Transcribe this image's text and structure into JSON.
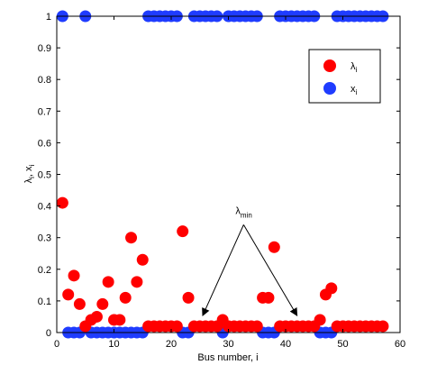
{
  "chart_data": {
    "type": "scatter",
    "title": "",
    "xlabel": "Bus number, i",
    "ylabel": {
      "base1": "λ",
      "sub1": "i",
      "sep": ", x",
      "sub2": "i"
    },
    "xlim": [
      0,
      60
    ],
    "ylim": [
      0,
      1
    ],
    "x_ticks": [
      0,
      10,
      20,
      30,
      40,
      50,
      60
    ],
    "y_ticks": [
      0,
      0.1,
      0.2,
      0.3,
      0.4,
      0.5,
      0.6,
      0.7,
      0.8,
      0.9,
      1
    ],
    "grid": false,
    "legend_position": "top-right",
    "series": [
      {
        "name_base": "λ",
        "name_sub": "i",
        "color": "#ff0000",
        "points": [
          [
            1,
            0.41
          ],
          [
            2,
            0.12
          ],
          [
            3,
            0.18
          ],
          [
            4,
            0.09
          ],
          [
            5,
            0.02
          ],
          [
            6,
            0.04
          ],
          [
            7,
            0.05
          ],
          [
            8,
            0.09
          ],
          [
            9,
            0.16
          ],
          [
            10,
            0.04
          ],
          [
            11,
            0.04
          ],
          [
            12,
            0.11
          ],
          [
            13,
            0.3
          ],
          [
            14,
            0.16
          ],
          [
            15,
            0.23
          ],
          [
            16,
            0.02
          ],
          [
            17,
            0.02
          ],
          [
            18,
            0.02
          ],
          [
            19,
            0.02
          ],
          [
            20,
            0.02
          ],
          [
            21,
            0.02
          ],
          [
            22,
            0.32
          ],
          [
            23,
            0.11
          ],
          [
            24,
            0.02
          ],
          [
            25,
            0.02
          ],
          [
            26,
            0.02
          ],
          [
            27,
            0.02
          ],
          [
            28,
            0.02
          ],
          [
            29,
            0.04
          ],
          [
            30,
            0.02
          ],
          [
            31,
            0.02
          ],
          [
            32,
            0.02
          ],
          [
            33,
            0.02
          ],
          [
            34,
            0.02
          ],
          [
            35,
            0.02
          ],
          [
            36,
            0.11
          ],
          [
            37,
            0.11
          ],
          [
            38,
            0.27
          ],
          [
            39,
            0.02
          ],
          [
            40,
            0.02
          ],
          [
            41,
            0.02
          ],
          [
            42,
            0.02
          ],
          [
            43,
            0.02
          ],
          [
            44,
            0.02
          ],
          [
            45,
            0.02
          ],
          [
            46,
            0.04
          ],
          [
            47,
            0.12
          ],
          [
            48,
            0.14
          ],
          [
            49,
            0.02
          ],
          [
            50,
            0.02
          ],
          [
            51,
            0.02
          ],
          [
            52,
            0.02
          ],
          [
            53,
            0.02
          ],
          [
            54,
            0.02
          ],
          [
            55,
            0.02
          ],
          [
            56,
            0.02
          ],
          [
            57,
            0.02
          ]
        ]
      },
      {
        "name_base": "x",
        "name_sub": "i",
        "color": "#1f3cff",
        "points": [
          [
            1,
            1
          ],
          [
            2,
            0
          ],
          [
            3,
            0
          ],
          [
            4,
            0
          ],
          [
            5,
            1
          ],
          [
            6,
            0
          ],
          [
            7,
            0
          ],
          [
            8,
            0
          ],
          [
            9,
            0
          ],
          [
            10,
            0
          ],
          [
            11,
            0
          ],
          [
            12,
            0
          ],
          [
            13,
            0
          ],
          [
            14,
            0
          ],
          [
            15,
            0
          ],
          [
            16,
            1
          ],
          [
            17,
            1
          ],
          [
            18,
            1
          ],
          [
            19,
            1
          ],
          [
            20,
            1
          ],
          [
            21,
            1
          ],
          [
            22,
            0
          ],
          [
            23,
            0
          ],
          [
            24,
            1
          ],
          [
            25,
            1
          ],
          [
            26,
            1
          ],
          [
            27,
            1
          ],
          [
            28,
            1
          ],
          [
            29,
            0
          ],
          [
            30,
            1
          ],
          [
            31,
            1
          ],
          [
            32,
            1
          ],
          [
            33,
            1
          ],
          [
            34,
            1
          ],
          [
            35,
            1
          ],
          [
            36,
            0
          ],
          [
            37,
            0
          ],
          [
            38,
            0
          ],
          [
            39,
            1
          ],
          [
            40,
            1
          ],
          [
            41,
            1
          ],
          [
            42,
            1
          ],
          [
            43,
            1
          ],
          [
            44,
            1
          ],
          [
            45,
            1
          ],
          [
            46,
            0
          ],
          [
            47,
            0
          ],
          [
            48,
            0
          ],
          [
            49,
            1
          ],
          [
            50,
            1
          ],
          [
            51,
            1
          ],
          [
            52,
            1
          ],
          [
            53,
            1
          ],
          [
            54,
            1
          ],
          [
            55,
            1
          ],
          [
            56,
            1
          ],
          [
            57,
            1
          ]
        ]
      }
    ],
    "annotation": {
      "base": "λ",
      "sub": "min",
      "text_at": [
        32.5,
        0.375
      ],
      "targets": [
        [
          25.5,
          0.025
        ],
        [
          42,
          0.025
        ]
      ]
    }
  }
}
